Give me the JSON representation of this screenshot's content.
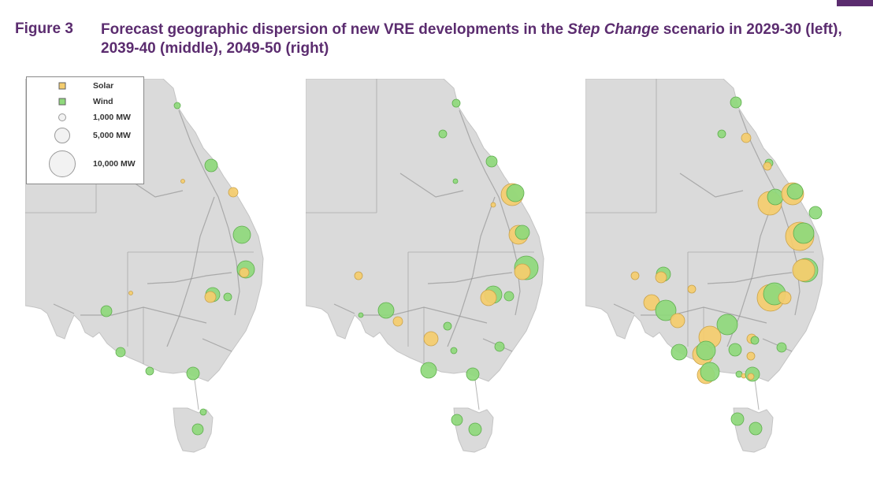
{
  "figure": {
    "number": "Figure 3",
    "title_part1": "Forecast geographic dispersion of new VRE developments in the ",
    "title_italic": "Step Change",
    "title_part2": " scenario in 2029-30 (left), 2039-40 (middle), 2049-50 (right)"
  },
  "legend": {
    "solar": "Solar",
    "wind": "Wind",
    "size_1000": "1,000 MW",
    "size_5000": "5,000 MW",
    "size_10000": "10,000 MW"
  },
  "colors": {
    "solar": "#f5cd6e",
    "wind": "#8fd97c",
    "land": "#dadada",
    "accent": "#5b2c6f"
  }
}
